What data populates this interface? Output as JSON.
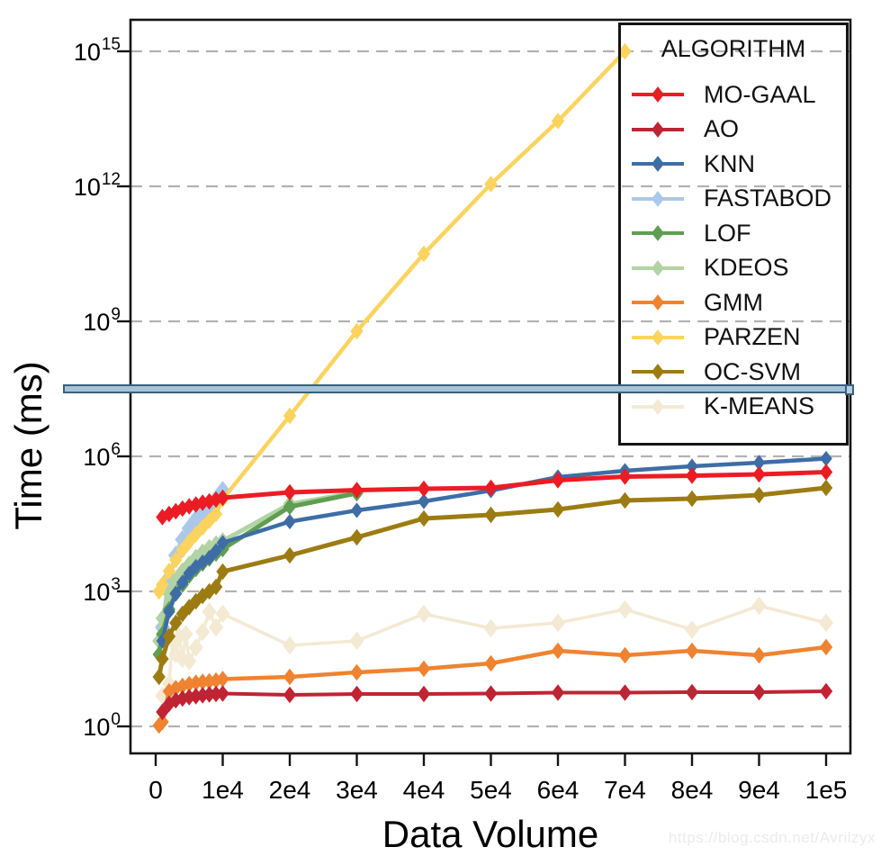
{
  "watermark": "https://blog.csdn.net/Avrilzyx",
  "overlay_bar": {
    "fill": "#a7c3d8",
    "border": "#39617f"
  },
  "chart_data": {
    "type": "line",
    "title": "",
    "xlabel": "Data Volume",
    "ylabel": "Time (ms)",
    "y_scale": "log10",
    "ylim": [
      1,
      1000000000000000
    ],
    "xlim": [
      0,
      100000
    ],
    "grid": {
      "style": "dashed",
      "color": "#b2b2b2",
      "orientation": "horizontal"
    },
    "legend_title": "ALGORITHM",
    "legend_position": "upper right",
    "x_ticks": [
      {
        "label": "0",
        "value": 0
      },
      {
        "label": "1e4",
        "value": 10000
      },
      {
        "label": "2e4",
        "value": 20000
      },
      {
        "label": "3e4",
        "value": 30000
      },
      {
        "label": "4e4",
        "value": 40000
      },
      {
        "label": "5e4",
        "value": 50000
      },
      {
        "label": "6e4",
        "value": 60000
      },
      {
        "label": "7e4",
        "value": 70000
      },
      {
        "label": "8e4",
        "value": 80000
      },
      {
        "label": "9e4",
        "value": 90000
      },
      {
        "label": "1e5",
        "value": 100000
      }
    ],
    "y_ticks": [
      {
        "base": "10",
        "exponent": 0
      },
      {
        "base": "10",
        "exponent": 3
      },
      {
        "base": "10",
        "exponent": 6
      },
      {
        "base": "10",
        "exponent": 9
      },
      {
        "base": "10",
        "exponent": 12
      },
      {
        "base": "10",
        "exponent": 15
      }
    ],
    "series_note": "points are [data_volume, log10(time_ms)]",
    "series": [
      {
        "name": "MO-GAAL",
        "color": "#ec1c24",
        "line_width": 5,
        "marker_size": 8,
        "z": 10,
        "points": [
          [
            1000,
            4.65
          ],
          [
            2000,
            4.72
          ],
          [
            3000,
            4.78
          ],
          [
            4000,
            4.84
          ],
          [
            5000,
            4.89
          ],
          [
            6000,
            4.93
          ],
          [
            7000,
            4.97
          ],
          [
            8000,
            5.0
          ],
          [
            9000,
            5.04
          ],
          [
            10000,
            5.08
          ],
          [
            20000,
            5.2
          ],
          [
            30000,
            5.25
          ],
          [
            40000,
            5.28
          ],
          [
            50000,
            5.3
          ],
          [
            60000,
            5.47
          ],
          [
            70000,
            5.55
          ],
          [
            80000,
            5.57
          ],
          [
            90000,
            5.6
          ],
          [
            100000,
            5.65
          ]
        ]
      },
      {
        "name": "AO",
        "color": "#bf2433",
        "line_width": 4,
        "marker_size": 8,
        "z": 9,
        "points": [
          [
            1000,
            0.32
          ],
          [
            2000,
            0.5
          ],
          [
            3000,
            0.58
          ],
          [
            4000,
            0.62
          ],
          [
            5000,
            0.65
          ],
          [
            6000,
            0.67
          ],
          [
            7000,
            0.69
          ],
          [
            8000,
            0.71
          ],
          [
            9000,
            0.72
          ],
          [
            10000,
            0.73
          ],
          [
            20000,
            0.7
          ],
          [
            30000,
            0.72
          ],
          [
            40000,
            0.72
          ],
          [
            50000,
            0.73
          ],
          [
            60000,
            0.75
          ],
          [
            70000,
            0.75
          ],
          [
            80000,
            0.76
          ],
          [
            90000,
            0.76
          ],
          [
            100000,
            0.78
          ]
        ]
      },
      {
        "name": "KNN",
        "color": "#3e6da6",
        "line_width": 4.5,
        "marker_size": 7.5,
        "z": 5,
        "points": [
          [
            1000,
            1.9
          ],
          [
            2000,
            2.55
          ],
          [
            3000,
            2.95
          ],
          [
            4000,
            3.2
          ],
          [
            5000,
            3.4
          ],
          [
            6000,
            3.55
          ],
          [
            7000,
            3.65
          ],
          [
            8000,
            3.75
          ],
          [
            9000,
            3.9
          ],
          [
            10000,
            4.08
          ],
          [
            20000,
            4.55
          ],
          [
            30000,
            4.8
          ],
          [
            40000,
            5.0
          ],
          [
            50000,
            5.24
          ],
          [
            60000,
            5.54
          ],
          [
            70000,
            5.68
          ],
          [
            80000,
            5.78
          ],
          [
            90000,
            5.86
          ],
          [
            100000,
            5.95
          ]
        ]
      },
      {
        "name": "FASTABOD",
        "color": "#aac8e9",
        "line_width": 5,
        "marker_size": 9.5,
        "z": 2,
        "points": [
          [
            1000,
            2.2
          ],
          [
            2000,
            3.3
          ],
          [
            3000,
            3.8
          ],
          [
            4000,
            4.15
          ],
          [
            5000,
            4.4
          ],
          [
            6000,
            4.6
          ],
          [
            7000,
            4.75
          ],
          [
            8000,
            4.9
          ],
          [
            9000,
            5.05
          ],
          [
            10000,
            5.24
          ]
        ]
      },
      {
        "name": "LOF",
        "color": "#5f9e52",
        "line_width": 5,
        "marker_size": 8,
        "z": 4,
        "points": [
          [
            500,
            1.6
          ],
          [
            1000,
            2.05
          ],
          [
            2000,
            2.6
          ],
          [
            3000,
            2.95
          ],
          [
            4000,
            3.15
          ],
          [
            5000,
            3.35
          ],
          [
            6000,
            3.5
          ],
          [
            7000,
            3.62
          ],
          [
            8000,
            3.73
          ],
          [
            9000,
            3.84
          ],
          [
            10000,
            3.94
          ],
          [
            20000,
            4.88
          ],
          [
            30000,
            5.18
          ]
        ]
      },
      {
        "name": "KDEOS",
        "color": "#b2d3a3",
        "line_width": 5,
        "marker_size": 8.5,
        "z": 3,
        "points": [
          [
            500,
            1.9
          ],
          [
            1000,
            2.4
          ],
          [
            2000,
            2.95
          ],
          [
            3000,
            3.25
          ],
          [
            4000,
            3.45
          ],
          [
            5000,
            3.6
          ],
          [
            6000,
            3.75
          ],
          [
            7000,
            3.87
          ],
          [
            8000,
            3.97
          ],
          [
            9000,
            4.05
          ],
          [
            10000,
            4.12
          ],
          [
            20000,
            4.94
          ],
          [
            30000,
            5.2
          ]
        ]
      },
      {
        "name": "GMM",
        "color": "#ef8331",
        "line_width": 4.5,
        "marker_size": 8,
        "z": 8,
        "points": [
          [
            500,
            0.02
          ],
          [
            1000,
            0.1
          ],
          [
            2000,
            0.78
          ],
          [
            3000,
            0.85
          ],
          [
            4000,
            0.9
          ],
          [
            5000,
            0.94
          ],
          [
            6000,
            0.97
          ],
          [
            7000,
            0.99
          ],
          [
            8000,
            1.0
          ],
          [
            9000,
            1.02
          ],
          [
            10000,
            1.05
          ],
          [
            20000,
            1.1
          ],
          [
            30000,
            1.2
          ],
          [
            40000,
            1.28
          ],
          [
            50000,
            1.4
          ],
          [
            60000,
            1.68
          ],
          [
            70000,
            1.58
          ],
          [
            80000,
            1.68
          ],
          [
            90000,
            1.58
          ],
          [
            100000,
            1.76
          ]
        ]
      },
      {
        "name": "PARZEN",
        "color": "#fbd35e",
        "line_width": 4.5,
        "marker_size": 8,
        "z": 7,
        "points": [
          [
            500,
            3.0
          ],
          [
            1000,
            3.15
          ],
          [
            2000,
            3.45
          ],
          [
            3000,
            3.7
          ],
          [
            4000,
            3.92
          ],
          [
            5000,
            4.1
          ],
          [
            6000,
            4.27
          ],
          [
            7000,
            4.42
          ],
          [
            8000,
            4.57
          ],
          [
            9000,
            4.72
          ],
          [
            10000,
            5.05
          ],
          [
            20000,
            6.9
          ],
          [
            30000,
            8.78
          ],
          [
            40000,
            10.5
          ],
          [
            50000,
            12.05
          ],
          [
            60000,
            13.45
          ],
          [
            70000,
            15.0
          ]
        ]
      },
      {
        "name": "OC-SVM",
        "color": "#9c7c12",
        "line_width": 5,
        "marker_size": 8,
        "z": 6,
        "points": [
          [
            500,
            1.1
          ],
          [
            1000,
            1.5
          ],
          [
            2000,
            2.0
          ],
          [
            3000,
            2.3
          ],
          [
            4000,
            2.5
          ],
          [
            5000,
            2.65
          ],
          [
            6000,
            2.78
          ],
          [
            7000,
            2.9
          ],
          [
            8000,
            3.0
          ],
          [
            9000,
            3.1
          ],
          [
            10000,
            3.44
          ],
          [
            20000,
            3.8
          ],
          [
            30000,
            4.2
          ],
          [
            40000,
            4.62
          ],
          [
            50000,
            4.7
          ],
          [
            60000,
            4.82
          ],
          [
            70000,
            5.02
          ],
          [
            80000,
            5.06
          ],
          [
            90000,
            5.14
          ],
          [
            100000,
            5.3
          ]
        ]
      },
      {
        "name": "K-MEANS",
        "color": "#f4e9d3",
        "line_width": 3.5,
        "marker_size": 9,
        "z": 1,
        "points": [
          [
            1000,
            0.68
          ],
          [
            2000,
            0.95
          ],
          [
            2500,
            1.9
          ],
          [
            3000,
            1.6
          ],
          [
            3500,
            2.0
          ],
          [
            4000,
            1.5
          ],
          [
            4500,
            2.05
          ],
          [
            5000,
            1.45
          ],
          [
            6000,
            1.75
          ],
          [
            7000,
            2.1
          ],
          [
            8000,
            2.55
          ],
          [
            9000,
            2.2
          ],
          [
            10000,
            2.5
          ],
          [
            20000,
            1.8
          ],
          [
            30000,
            1.9
          ],
          [
            40000,
            2.5
          ],
          [
            50000,
            2.18
          ],
          [
            60000,
            2.3
          ],
          [
            70000,
            2.6
          ],
          [
            80000,
            2.15
          ],
          [
            90000,
            2.68
          ],
          [
            100000,
            2.3
          ]
        ]
      }
    ]
  }
}
